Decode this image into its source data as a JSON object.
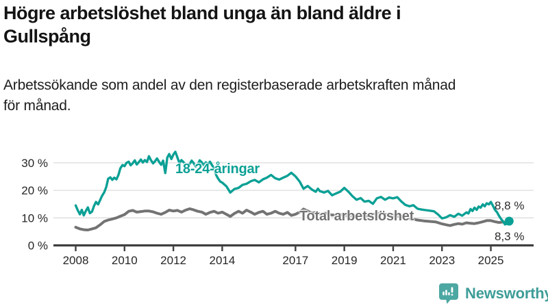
{
  "header": {
    "title_lines": [
      "Högre arbetslöshet bland unga än bland äldre i",
      "Gullspång"
    ],
    "subtitle_lines": [
      "Arbetssökande som andel av den registerbaserade arbetskraften månad",
      "för månad."
    ]
  },
  "chart_data": {
    "type": "line",
    "title": "Högre arbetslöshet bland unga än bland äldre i Gullspång",
    "subtitle": "Arbetssökande som andel av den registerbaserade arbetskraften månad för månad.",
    "x_axis": {
      "ticks": [
        2008,
        2010,
        2012,
        2014,
        2017,
        2019,
        2021,
        2023,
        2025
      ],
      "labels": [
        "2008",
        "2010",
        "2012",
        "2014",
        "2017",
        "2019",
        "2021",
        "2023",
        "2025"
      ],
      "range_years": [
        2008.0,
        2025.75
      ]
    },
    "y_axis": {
      "ticks": [
        0,
        10,
        20,
        30
      ],
      "labels": [
        "0 %",
        "10 %",
        "20 %",
        "30 %"
      ],
      "unit": "%",
      "ylim": [
        0,
        35
      ],
      "grid": true
    },
    "legend_position": "inline-labels-on-lines",
    "series": [
      {
        "name": "18-24-åringar",
        "color": "#0ba095",
        "end_label": "8,8 %",
        "end_value": 8.8,
        "points": [
          [
            2008.0,
            14.5
          ],
          [
            2008.08,
            12.8
          ],
          [
            2008.17,
            11.3
          ],
          [
            2008.25,
            12.9
          ],
          [
            2008.33,
            10.9
          ],
          [
            2008.42,
            12.6
          ],
          [
            2008.5,
            13.8
          ],
          [
            2008.58,
            11.7
          ],
          [
            2008.67,
            12.3
          ],
          [
            2008.75,
            14.3
          ],
          [
            2008.83,
            15.8
          ],
          [
            2008.92,
            14.9
          ],
          [
            2009.0,
            16.5
          ],
          [
            2009.08,
            18.0
          ],
          [
            2009.17,
            19.3
          ],
          [
            2009.25,
            21.2
          ],
          [
            2009.33,
            24.2
          ],
          [
            2009.42,
            24.7
          ],
          [
            2009.5,
            23.8
          ],
          [
            2009.58,
            24.6
          ],
          [
            2009.67,
            24.0
          ],
          [
            2009.75,
            25.6
          ],
          [
            2009.83,
            28.0
          ],
          [
            2009.92,
            29.2
          ],
          [
            2010.0,
            28.8
          ],
          [
            2010.08,
            30.0
          ],
          [
            2010.17,
            30.4
          ],
          [
            2010.25,
            29.1
          ],
          [
            2010.33,
            29.8
          ],
          [
            2010.42,
            30.9
          ],
          [
            2010.5,
            29.4
          ],
          [
            2010.58,
            30.2
          ],
          [
            2010.67,
            31.2
          ],
          [
            2010.75,
            30.1
          ],
          [
            2010.83,
            31.0
          ],
          [
            2010.92,
            30.3
          ],
          [
            2011.0,
            32.4
          ],
          [
            2011.08,
            31.0
          ],
          [
            2011.17,
            29.8
          ],
          [
            2011.25,
            30.6
          ],
          [
            2011.33,
            31.6
          ],
          [
            2011.42,
            30.3
          ],
          [
            2011.5,
            29.3
          ],
          [
            2011.58,
            30.8
          ],
          [
            2011.67,
            26.3
          ],
          [
            2011.75,
            31.9
          ],
          [
            2011.83,
            33.2
          ],
          [
            2011.92,
            31.4
          ],
          [
            2012.0,
            33.0
          ],
          [
            2012.08,
            34.0
          ],
          [
            2012.17,
            31.8
          ],
          [
            2012.25,
            29.9
          ],
          [
            2012.33,
            31.0
          ],
          [
            2012.42,
            30.2
          ],
          [
            2012.5,
            29.4
          ],
          [
            2012.58,
            28.4
          ],
          [
            2012.67,
            29.6
          ],
          [
            2012.75,
            30.8
          ],
          [
            2012.83,
            29.9
          ],
          [
            2012.92,
            28.6
          ],
          [
            2013.0,
            29.5
          ],
          [
            2013.08,
            30.9
          ],
          [
            2013.17,
            30.1
          ],
          [
            2013.25,
            29.0
          ],
          [
            2013.33,
            30.2
          ],
          [
            2013.42,
            29.5
          ],
          [
            2013.5,
            30.4
          ],
          [
            2013.58,
            29.2
          ],
          [
            2013.67,
            28.0
          ],
          [
            2013.75,
            25.6
          ],
          [
            2013.83,
            24.3
          ],
          [
            2013.92,
            23.2
          ],
          [
            2014.0,
            22.8
          ],
          [
            2014.17,
            21.5
          ],
          [
            2014.33,
            19.2
          ],
          [
            2014.5,
            20.5
          ],
          [
            2014.67,
            20.9
          ],
          [
            2014.83,
            22.0
          ],
          [
            2015.0,
            22.4
          ],
          [
            2015.17,
            23.3
          ],
          [
            2015.33,
            23.8
          ],
          [
            2015.5,
            22.9
          ],
          [
            2015.67,
            24.0
          ],
          [
            2015.83,
            24.6
          ],
          [
            2016.0,
            25.6
          ],
          [
            2016.17,
            24.4
          ],
          [
            2016.33,
            23.9
          ],
          [
            2016.5,
            24.6
          ],
          [
            2016.67,
            25.3
          ],
          [
            2016.83,
            26.4
          ],
          [
            2017.0,
            25.1
          ],
          [
            2017.17,
            23.2
          ],
          [
            2017.33,
            20.6
          ],
          [
            2017.5,
            21.6
          ],
          [
            2017.67,
            20.3
          ],
          [
            2017.83,
            19.5
          ],
          [
            2017.92,
            20.6
          ],
          [
            2018.0,
            19.7
          ],
          [
            2018.17,
            19.2
          ],
          [
            2018.33,
            19.8
          ],
          [
            2018.5,
            18.2
          ],
          [
            2018.67,
            18.9
          ],
          [
            2018.83,
            19.5
          ],
          [
            2019.0,
            20.9
          ],
          [
            2019.17,
            19.5
          ],
          [
            2019.33,
            17.9
          ],
          [
            2019.5,
            16.6
          ],
          [
            2019.67,
            17.2
          ],
          [
            2019.83,
            15.9
          ],
          [
            2020.0,
            16.2
          ],
          [
            2020.17,
            15.1
          ],
          [
            2020.33,
            17.1
          ],
          [
            2020.5,
            17.6
          ],
          [
            2020.67,
            16.6
          ],
          [
            2020.83,
            17.4
          ],
          [
            2021.0,
            17.1
          ],
          [
            2021.17,
            17.5
          ],
          [
            2021.33,
            16.0
          ],
          [
            2021.5,
            14.7
          ],
          [
            2021.67,
            14.2
          ],
          [
            2021.83,
            14.6
          ],
          [
            2022.0,
            13.3
          ],
          [
            2022.17,
            13.0
          ],
          [
            2022.33,
            12.8
          ],
          [
            2022.5,
            12.6
          ],
          [
            2022.67,
            12.4
          ],
          [
            2022.83,
            11.3
          ],
          [
            2023.0,
            9.8
          ],
          [
            2023.17,
            10.2
          ],
          [
            2023.33,
            11.0
          ],
          [
            2023.5,
            10.4
          ],
          [
            2023.67,
            11.5
          ],
          [
            2023.83,
            10.8
          ],
          [
            2024.0,
            12.0
          ],
          [
            2024.08,
            11.6
          ],
          [
            2024.17,
            13.2
          ],
          [
            2024.25,
            12.5
          ],
          [
            2024.33,
            13.7
          ],
          [
            2024.42,
            12.9
          ],
          [
            2024.5,
            14.1
          ],
          [
            2024.58,
            13.7
          ],
          [
            2024.67,
            14.9
          ],
          [
            2024.75,
            14.2
          ],
          [
            2024.83,
            15.3
          ],
          [
            2024.92,
            14.9
          ],
          [
            2025.0,
            15.8
          ],
          [
            2025.08,
            14.5
          ],
          [
            2025.17,
            12.9
          ],
          [
            2025.25,
            12.1
          ],
          [
            2025.33,
            10.8
          ],
          [
            2025.42,
            9.6
          ],
          [
            2025.5,
            8.7
          ],
          [
            2025.58,
            7.6
          ],
          [
            2025.67,
            7.9
          ],
          [
            2025.75,
            8.8
          ]
        ]
      },
      {
        "name": "Total arbetslöshet",
        "color": "#737373",
        "end_label": "8,3 %",
        "end_value": 8.3,
        "points": [
          [
            2008.0,
            6.6
          ],
          [
            2008.17,
            6.0
          ],
          [
            2008.33,
            5.7
          ],
          [
            2008.5,
            5.6
          ],
          [
            2008.67,
            6.0
          ],
          [
            2008.83,
            6.4
          ],
          [
            2009.0,
            7.5
          ],
          [
            2009.17,
            8.7
          ],
          [
            2009.33,
            9.2
          ],
          [
            2009.5,
            9.6
          ],
          [
            2009.67,
            10.0
          ],
          [
            2009.83,
            10.6
          ],
          [
            2010.0,
            11.2
          ],
          [
            2010.17,
            12.4
          ],
          [
            2010.33,
            12.7
          ],
          [
            2010.5,
            12.1
          ],
          [
            2010.67,
            12.3
          ],
          [
            2010.83,
            12.5
          ],
          [
            2011.0,
            12.5
          ],
          [
            2011.17,
            12.2
          ],
          [
            2011.33,
            11.7
          ],
          [
            2011.5,
            11.3
          ],
          [
            2011.67,
            12.0
          ],
          [
            2011.83,
            12.8
          ],
          [
            2012.0,
            12.5
          ],
          [
            2012.17,
            12.7
          ],
          [
            2012.33,
            12.1
          ],
          [
            2012.5,
            12.8
          ],
          [
            2012.67,
            13.3
          ],
          [
            2012.83,
            12.9
          ],
          [
            2013.0,
            12.4
          ],
          [
            2013.17,
            12.1
          ],
          [
            2013.33,
            11.3
          ],
          [
            2013.5,
            12.0
          ],
          [
            2013.67,
            12.4
          ],
          [
            2013.83,
            11.7
          ],
          [
            2014.0,
            12.1
          ],
          [
            2014.17,
            11.3
          ],
          [
            2014.33,
            10.5
          ],
          [
            2014.5,
            11.6
          ],
          [
            2014.67,
            12.4
          ],
          [
            2014.83,
            11.7
          ],
          [
            2015.0,
            12.8
          ],
          [
            2015.17,
            12.1
          ],
          [
            2015.33,
            11.3
          ],
          [
            2015.5,
            12.0
          ],
          [
            2015.67,
            12.4
          ],
          [
            2015.83,
            11.3
          ],
          [
            2016.0,
            11.7
          ],
          [
            2016.17,
            12.4
          ],
          [
            2016.33,
            11.7
          ],
          [
            2016.5,
            11.3
          ],
          [
            2016.67,
            12.0
          ],
          [
            2016.83,
            10.9
          ],
          [
            2017.0,
            11.3
          ],
          [
            2017.17,
            12.1
          ],
          [
            2017.33,
            13.2
          ],
          [
            2017.5,
            12.5
          ],
          [
            2017.67,
            11.7
          ],
          [
            2017.83,
            12.0
          ],
          [
            2018.0,
            11.4
          ],
          [
            2018.25,
            11.7
          ],
          [
            2018.5,
            11.0
          ],
          [
            2018.75,
            11.3
          ],
          [
            2019.0,
            11.0
          ],
          [
            2019.25,
            10.7
          ],
          [
            2019.5,
            10.9
          ],
          [
            2019.75,
            10.6
          ],
          [
            2020.0,
            10.8
          ],
          [
            2020.25,
            11.4
          ],
          [
            2020.5,
            11.7
          ],
          [
            2020.75,
            11.2
          ],
          [
            2021.0,
            11.0
          ],
          [
            2021.25,
            10.5
          ],
          [
            2021.5,
            10.0
          ],
          [
            2021.75,
            9.6
          ],
          [
            2022.0,
            9.2
          ],
          [
            2022.25,
            8.9
          ],
          [
            2022.5,
            8.7
          ],
          [
            2022.75,
            8.5
          ],
          [
            2023.0,
            7.8
          ],
          [
            2023.17,
            7.5
          ],
          [
            2023.33,
            7.2
          ],
          [
            2023.5,
            7.6
          ],
          [
            2023.67,
            7.9
          ],
          [
            2023.83,
            7.7
          ],
          [
            2024.0,
            8.2
          ],
          [
            2024.17,
            8.0
          ],
          [
            2024.33,
            7.9
          ],
          [
            2024.5,
            8.2
          ],
          [
            2024.67,
            8.6
          ],
          [
            2024.83,
            9.0
          ],
          [
            2025.0,
            9.0
          ],
          [
            2025.17,
            8.6
          ],
          [
            2025.33,
            8.3
          ],
          [
            2025.5,
            8.5
          ],
          [
            2025.67,
            8.2
          ],
          [
            2025.75,
            8.3
          ]
        ]
      }
    ]
  },
  "footer": {
    "brand": "Newsworthy"
  },
  "colors": {
    "accent_teal": "#0ba095",
    "series_gray": "#737373",
    "gridline": "#dcdcdc",
    "axis": "#3f3f41",
    "title_text": "#141414",
    "end_label_text": "#2b2b2b",
    "logo_teal": "#4da7a2",
    "logo_text_teal": "#3e9d98"
  }
}
